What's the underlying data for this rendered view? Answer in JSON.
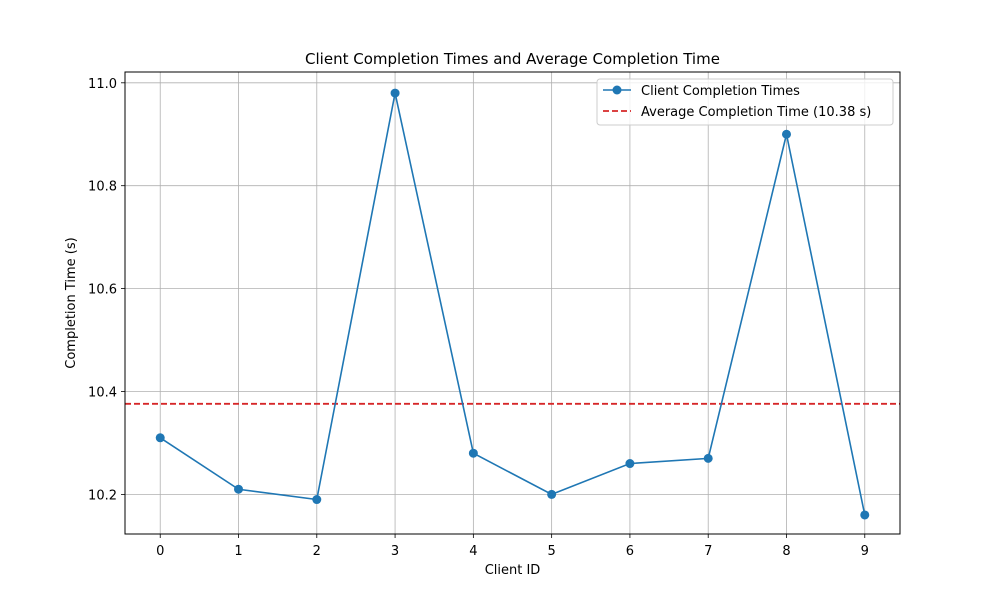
{
  "chart_data": {
    "type": "line",
    "title": "Client Completion Times and Average Completion Time",
    "xlabel": "Client ID",
    "ylabel": "Completion Time (s)",
    "x": [
      0,
      1,
      2,
      3,
      4,
      5,
      6,
      7,
      8,
      9
    ],
    "xlim": [
      -0.45,
      9.45
    ],
    "ylim": [
      10.123,
      11.021
    ],
    "xticks": [
      "0",
      "1",
      "2",
      "3",
      "4",
      "5",
      "6",
      "7",
      "8",
      "9"
    ],
    "yticks": [
      10.2,
      10.4,
      10.6,
      10.8,
      11.0
    ],
    "ytick_labels": [
      "10.2",
      "10.4",
      "10.6",
      "10.8",
      "11.0"
    ],
    "grid": true,
    "legend_position": "top-right",
    "series": [
      {
        "name": "Client Completion Times",
        "values": [
          10.31,
          10.21,
          10.19,
          10.98,
          10.28,
          10.2,
          10.26,
          10.27,
          10.9,
          10.16
        ],
        "color": "#1f77b4",
        "style": "solid",
        "marker": "circle"
      }
    ],
    "reference_lines": [
      {
        "name": "Average Completion Time (10.38 s)",
        "value": 10.376,
        "color": "#d62728",
        "style": "dashed"
      }
    ]
  }
}
